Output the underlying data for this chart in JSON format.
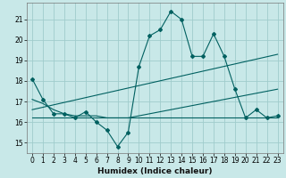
{
  "xlabel": "Humidex (Indice chaleur)",
  "bg_color": "#c8e8e8",
  "grid_color": "#a0cccc",
  "line_color": "#006060",
  "xlim": [
    -0.5,
    23.5
  ],
  "ylim": [
    14.5,
    21.8
  ],
  "yticks": [
    15,
    16,
    17,
    18,
    19,
    20,
    21
  ],
  "xticks": [
    0,
    1,
    2,
    3,
    4,
    5,
    6,
    7,
    8,
    9,
    10,
    11,
    12,
    13,
    14,
    15,
    16,
    17,
    18,
    19,
    20,
    21,
    22,
    23
  ],
  "series1_x": [
    0,
    1,
    2,
    3,
    4,
    5,
    6,
    7,
    8,
    9,
    10,
    11,
    12,
    13,
    14,
    15,
    16,
    17,
    18,
    19,
    20,
    21,
    22,
    23
  ],
  "series1_y": [
    18.1,
    17.1,
    16.4,
    16.4,
    16.2,
    16.5,
    16.0,
    15.6,
    14.8,
    15.5,
    18.7,
    20.2,
    20.5,
    21.4,
    21.0,
    19.2,
    19.2,
    20.3,
    19.2,
    17.6,
    16.2,
    16.6,
    16.2,
    16.3
  ],
  "series2_x": [
    0,
    1,
    2,
    3,
    4,
    5,
    6,
    7,
    8,
    9,
    10,
    11,
    12,
    13,
    14,
    15,
    16,
    17,
    18,
    19,
    20,
    21,
    22,
    23
  ],
  "series2_y": [
    17.1,
    16.9,
    16.6,
    16.4,
    16.3,
    16.3,
    16.3,
    16.2,
    16.2,
    16.2,
    16.3,
    16.4,
    16.5,
    16.6,
    16.7,
    16.8,
    16.9,
    17.0,
    17.1,
    17.2,
    17.3,
    17.4,
    17.5,
    17.6
  ],
  "series3_x": [
    0,
    23
  ],
  "series3_y": [
    16.2,
    16.2
  ],
  "series4_x": [
    0,
    23
  ],
  "series4_y": [
    16.6,
    19.3
  ]
}
